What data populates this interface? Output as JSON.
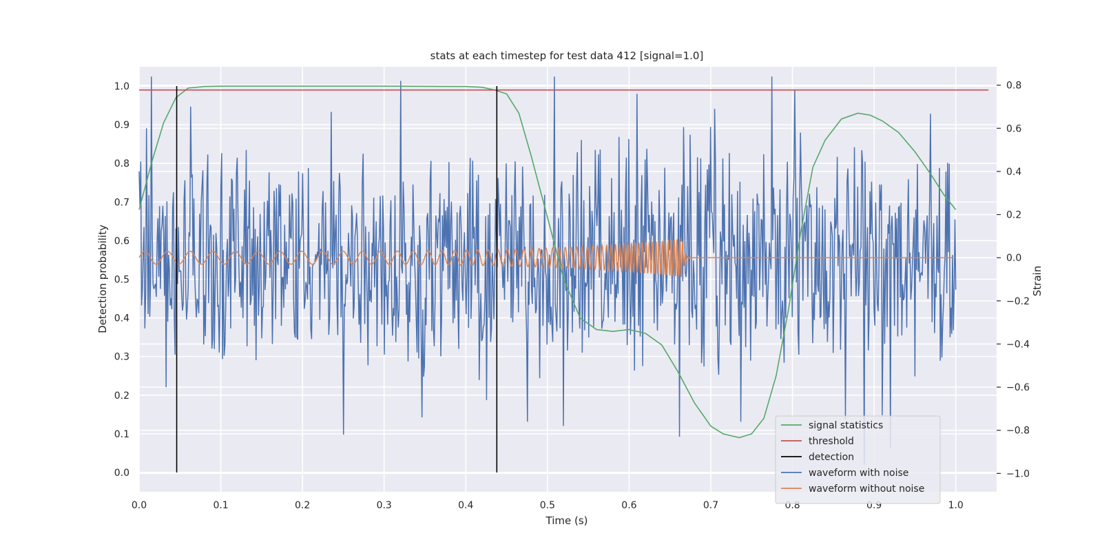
{
  "chart_data": {
    "type": "line",
    "title": "stats at each timestep for test data 412 [signal=1.0]",
    "xlabel": "Time (s)",
    "ylabel": "Detection probability",
    "y2label": "Strain",
    "xlim": [
      0.0,
      1.05
    ],
    "ylim": [
      -0.05,
      1.05
    ],
    "y2lim": [
      -1.085,
      0.885
    ],
    "xticks": [
      "0.0",
      "0.1",
      "0.2",
      "0.3",
      "0.4",
      "0.5",
      "0.6",
      "0.7",
      "0.8",
      "0.9",
      "1.0"
    ],
    "yticks": [
      "0.0",
      "0.1",
      "0.2",
      "0.3",
      "0.4",
      "0.5",
      "0.6",
      "0.7",
      "0.8",
      "0.9",
      "1.0"
    ],
    "y2ticks": [
      "−1.0",
      "−0.8",
      "−0.6",
      "−0.4",
      "−0.2",
      "0.0",
      "0.2",
      "0.4",
      "0.6",
      "0.8"
    ],
    "grid": true,
    "legend_position": "lower-right",
    "series": [
      {
        "name": "signal statistics",
        "axis": "left",
        "color": "#55a868",
        "x": [
          0.0,
          0.015,
          0.03,
          0.045,
          0.06,
          0.08,
          0.1,
          0.2,
          0.3,
          0.4,
          0.42,
          0.435,
          0.45,
          0.465,
          0.48,
          0.5,
          0.52,
          0.54,
          0.56,
          0.58,
          0.6,
          0.62,
          0.64,
          0.66,
          0.68,
          0.7,
          0.715,
          0.735,
          0.75,
          0.765,
          0.78,
          0.795,
          0.81,
          0.825,
          0.84,
          0.86,
          0.88,
          0.895,
          0.91,
          0.93,
          0.95,
          0.97,
          0.985,
          1.0
        ],
        "y": [
          0.68,
          0.8,
          0.905,
          0.97,
          0.995,
          0.999,
          1.0,
          1.0,
          1.0,
          0.999,
          0.997,
          0.99,
          0.98,
          0.93,
          0.82,
          0.66,
          0.5,
          0.4,
          0.37,
          0.365,
          0.37,
          0.36,
          0.33,
          0.26,
          0.18,
          0.12,
          0.1,
          0.09,
          0.1,
          0.14,
          0.25,
          0.42,
          0.62,
          0.79,
          0.86,
          0.915,
          0.93,
          0.925,
          0.91,
          0.88,
          0.83,
          0.77,
          0.72,
          0.68
        ]
      },
      {
        "name": "threshold",
        "axis": "left",
        "color": "#c44e52",
        "x": [
          0.0,
          1.04
        ],
        "y": [
          0.99,
          0.99
        ]
      },
      {
        "name": "detection",
        "axis": "left",
        "color": "#000000",
        "type": "vlines",
        "x": [
          0.046,
          0.438
        ],
        "ymin": 0.0,
        "ymax": 1.0
      },
      {
        "name": "waveform with noise",
        "axis": "right",
        "color": "#4c72b0",
        "x_start": 0.0,
        "x_end": 1.0,
        "points": 1000,
        "note_values": "random-looking noise, mostly within -0.5..0.5 strain, spikes reaching ~0.8 and ~-0.85",
        "peaks": [
          [
            0.009,
            0.6
          ],
          [
            0.0,
            0.4
          ],
          [
            0.033,
            -0.6
          ],
          [
            0.063,
            0.7
          ],
          [
            0.32,
            0.82
          ],
          [
            0.25,
            -0.82
          ],
          [
            0.346,
            -0.74
          ],
          [
            0.425,
            -0.66
          ],
          [
            0.475,
            -0.76
          ],
          [
            0.52,
            -0.78
          ],
          [
            0.588,
            0.56
          ],
          [
            0.6,
            0.55
          ],
          [
            0.61,
            0.76
          ],
          [
            0.662,
            -0.83
          ],
          [
            0.675,
            0.57
          ],
          [
            0.705,
            0.69
          ],
          [
            0.737,
            -0.76
          ],
          [
            0.765,
            0.48
          ],
          [
            0.81,
            0.58
          ],
          [
            0.865,
            -0.75
          ],
          [
            0.888,
            -0.96
          ],
          [
            0.91,
            -0.73
          ],
          [
            0.92,
            -0.88
          ],
          [
            0.95,
            -0.55
          ],
          [
            0.99,
            0.44
          ]
        ]
      },
      {
        "name": "waveform without noise",
        "axis": "right",
        "color": "#dd8452",
        "type": "chirp",
        "x_start": 0.0,
        "x_merger": 0.665,
        "x_end": 1.0,
        "amplitude_start": 0.03,
        "amplitude_merger": 0.09,
        "frequency_start_hz": 36,
        "frequency_merger_hz": 300
      }
    ]
  }
}
